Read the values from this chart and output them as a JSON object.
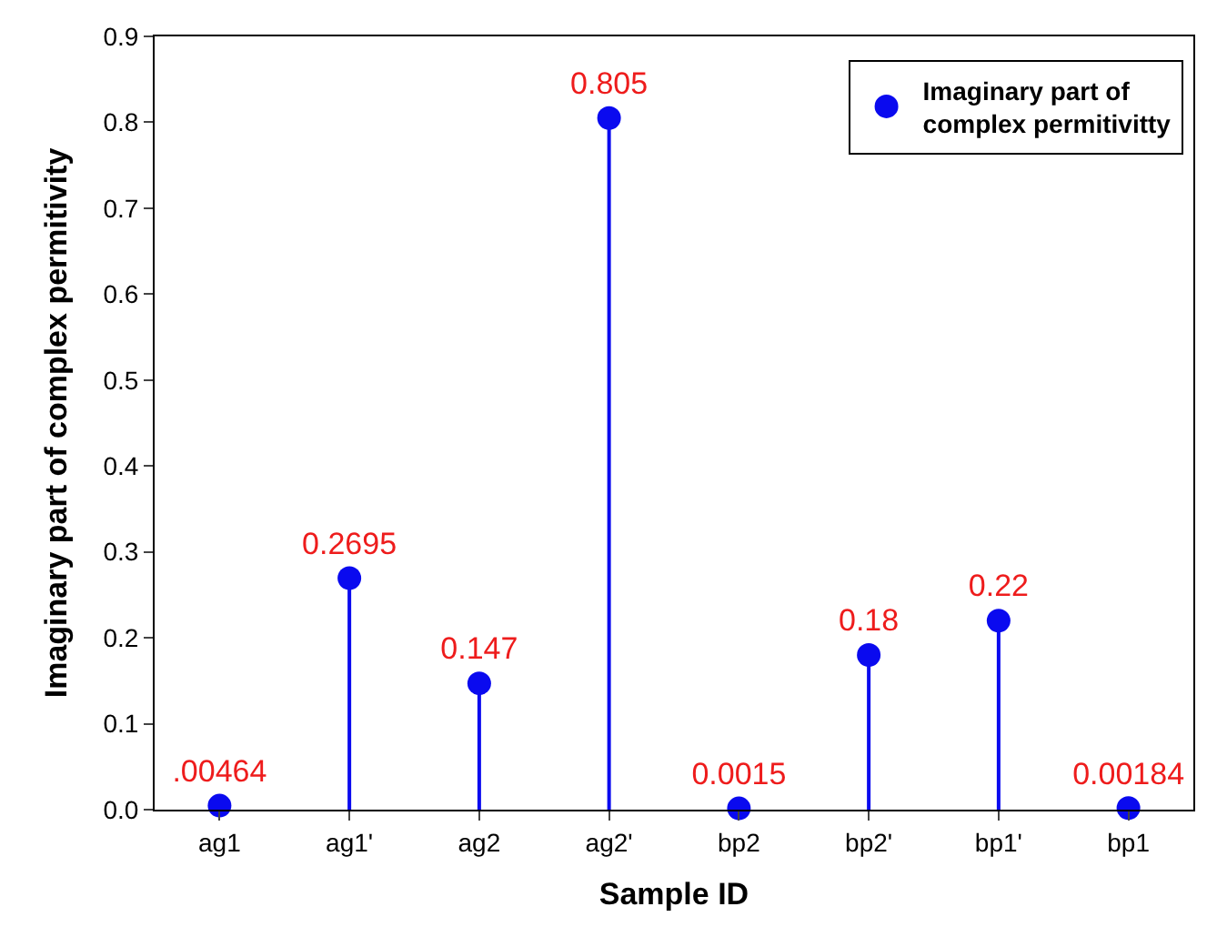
{
  "chart_data": {
    "type": "lollipop",
    "xlabel": "Sample ID",
    "ylabel": "Imaginary part of complex permitivity",
    "categories": [
      "ag1",
      "ag1'",
      "ag2",
      "ag2'",
      "bp2",
      "bp2'",
      "bp1'",
      "bp1"
    ],
    "series": [
      {
        "name": "Imaginary part of\ncomplex permitivitty",
        "color": "#0a0aef",
        "values": [
          0.00464,
          0.2695,
          0.147,
          0.805,
          0.0015,
          0.18,
          0.22,
          0.00184
        ],
        "value_labels": [
          ".00464",
          "0.2695",
          "0.147",
          "0.805",
          "0.0015",
          "0.18",
          "0.22",
          "0.00184"
        ]
      }
    ],
    "ylim": [
      0,
      0.9
    ],
    "yticks": [
      {
        "value": 0,
        "label": "0.0"
      },
      {
        "value": 0.1,
        "label": "0.1"
      },
      {
        "value": 0.2,
        "label": "0.2"
      },
      {
        "value": 0.3,
        "label": "0.3"
      },
      {
        "value": 0.4,
        "label": "0.4"
      },
      {
        "value": 0.5,
        "label": "0.5"
      },
      {
        "value": 0.6,
        "label": "0.6"
      },
      {
        "value": 0.7,
        "label": "0.7"
      },
      {
        "value": 0.8,
        "label": "0.8"
      },
      {
        "value": 0.9,
        "label": "0.9"
      }
    ],
    "legend": "top right",
    "marker": "circle"
  }
}
